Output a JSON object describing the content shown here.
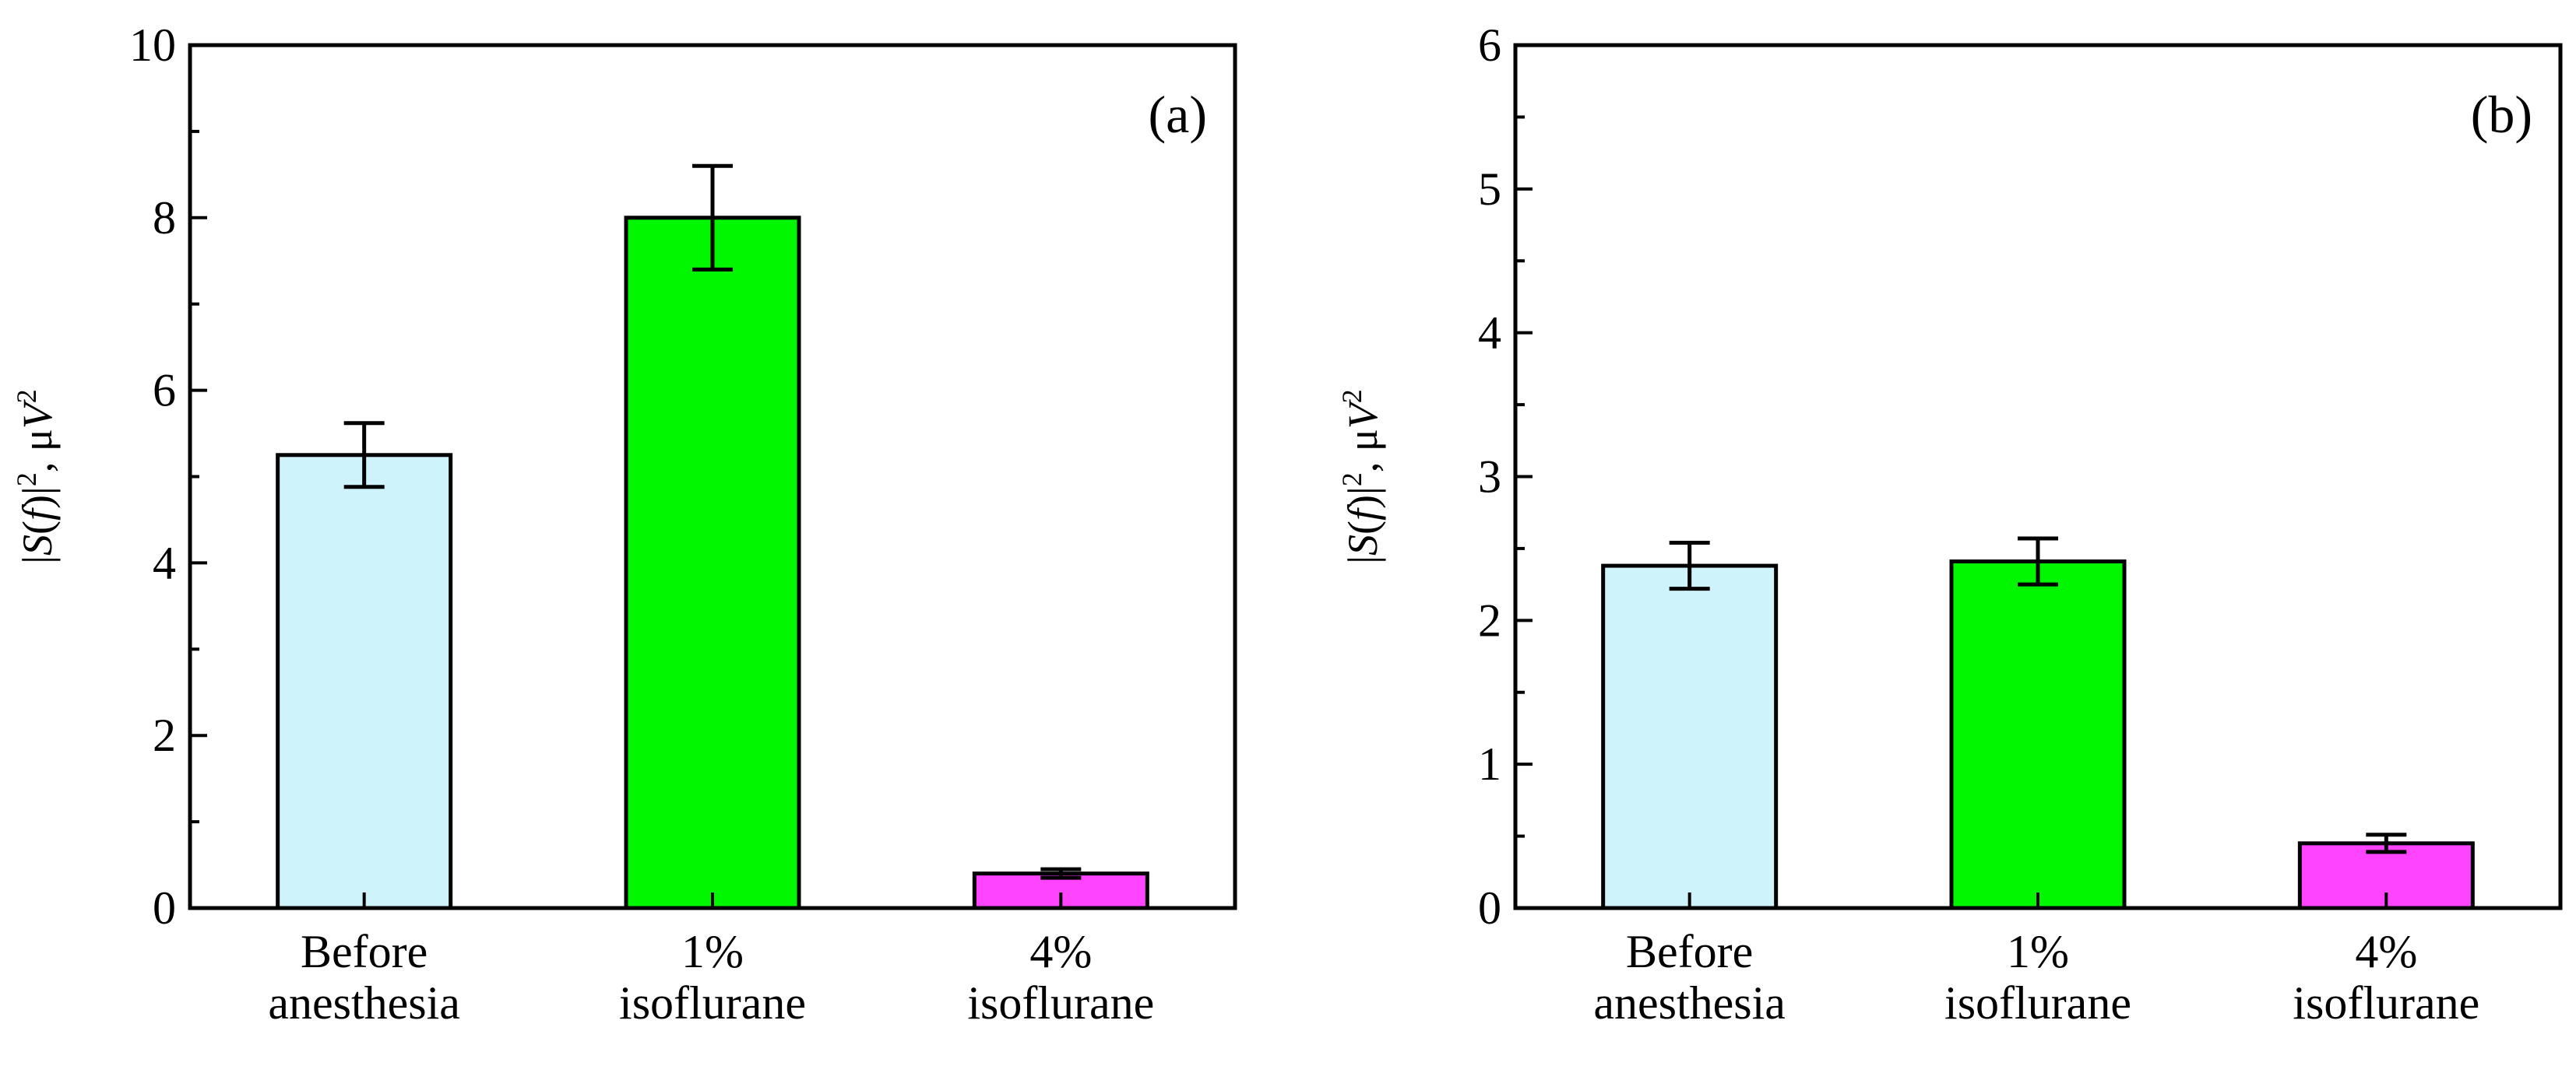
{
  "chart_data": [
    {
      "type": "bar",
      "panel_label": "(a)",
      "categories": [
        [
          "Before",
          "anesthesia"
        ],
        [
          "1%",
          "isoflurane"
        ],
        [
          "4%",
          "isoflurane"
        ]
      ],
      "values": [
        5.25,
        8.0,
        0.4
      ],
      "errors": [
        0.37,
        0.6,
        0.05
      ],
      "colors": [
        "#cff3fb",
        "#00f700",
        "#ff44ff"
      ],
      "ylabel": {
        "prefix": "|",
        "s": "S",
        "open": "(",
        "f": "f",
        "close": ")|",
        "sup": "2",
        "unit": ", μ",
        "v": "V",
        "vsup": "2"
      },
      "ylim": [
        0,
        10
      ],
      "yticks": [
        "0",
        "2",
        "4",
        "6",
        "8",
        "10"
      ],
      "ytick_values": [
        0,
        2,
        4,
        6,
        8,
        10
      ],
      "minor_step": 1
    },
    {
      "type": "bar",
      "panel_label": "(b)",
      "categories": [
        [
          "Before",
          "anesthesia"
        ],
        [
          "1%",
          "isoflurane"
        ],
        [
          "4%",
          "isoflurane"
        ]
      ],
      "values": [
        2.38,
        2.41,
        0.45
      ],
      "errors": [
        0.16,
        0.16,
        0.06
      ],
      "colors": [
        "#cff3fb",
        "#00f700",
        "#ff44ff"
      ],
      "ylabel": {
        "prefix": "|",
        "s": "S",
        "open": "(",
        "f": "f",
        "close": ")|",
        "sup": "2",
        "unit": ", μ",
        "v": "V",
        "vsup": "2"
      },
      "ylim": [
        0,
        6
      ],
      "yticks": [
        "0",
        "1",
        "2",
        "3",
        "4",
        "5",
        "6"
      ],
      "ytick_values": [
        0,
        1,
        2,
        3,
        4,
        5,
        6
      ],
      "minor_step": 0.5
    }
  ]
}
